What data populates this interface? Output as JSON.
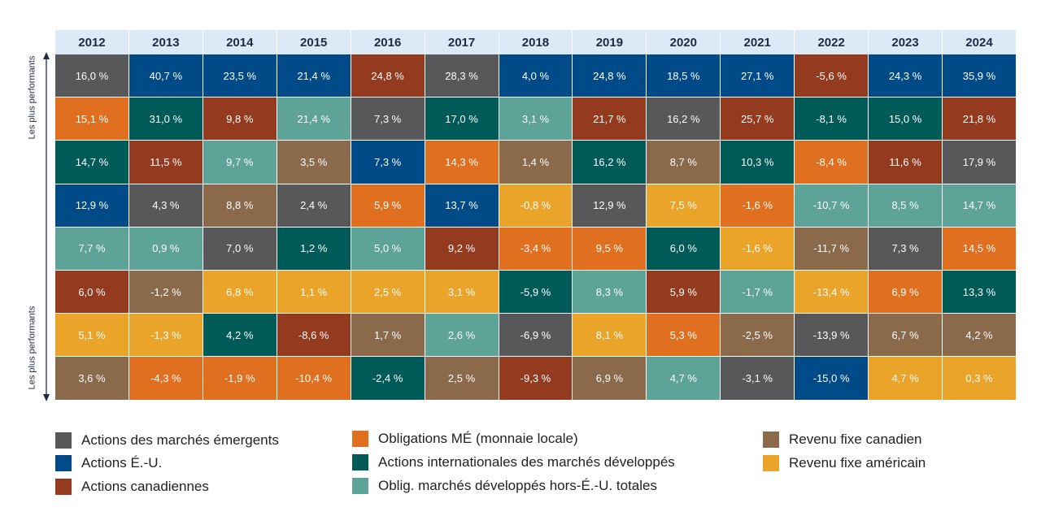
{
  "chart_data": {
    "type": "table",
    "title": "",
    "y_axis_top_label": "Les plus performants",
    "y_axis_bottom_label": "Les plus performants",
    "years": [
      "2012",
      "2013",
      "2014",
      "2015",
      "2016",
      "2017",
      "2018",
      "2019",
      "2020",
      "2021",
      "2022",
      "2023",
      "2024"
    ],
    "colors": {
      "em_equity": "#58585a",
      "us_equity": "#004b87",
      "cdn_equity": "#943a1f",
      "em_bonds": "#e07020",
      "intl_equity": "#005a58",
      "dev_bonds": "#5ea397",
      "cdn_fixed": "#8a6a4b",
      "us_fixed": "#eaa42a"
    },
    "legend": [
      {
        "key": "em_equity",
        "label": "Actions des marchés émergents"
      },
      {
        "key": "us_equity",
        "label": "Actions É.-U."
      },
      {
        "key": "cdn_equity",
        "label": "Actions canadiennes"
      },
      {
        "key": "em_bonds",
        "label": "Obligations MÉ (monnaie locale)"
      },
      {
        "key": "intl_equity",
        "label": "Actions internationales des marchés développés"
      },
      {
        "key": "dev_bonds",
        "label": "Oblig. marchés développés hors-É.-U. totales"
      },
      {
        "key": "cdn_fixed",
        "label": "Revenu fixe canadien"
      },
      {
        "key": "us_fixed",
        "label": "Revenu fixe américain"
      }
    ],
    "columns": [
      [
        {
          "v": "16,0 %",
          "k": "em_equity"
        },
        {
          "v": "15,1 %",
          "k": "em_bonds"
        },
        {
          "v": "14,7 %",
          "k": "intl_equity"
        },
        {
          "v": "12,9 %",
          "k": "us_equity"
        },
        {
          "v": "7,7 %",
          "k": "dev_bonds"
        },
        {
          "v": "6,0 %",
          "k": "cdn_equity"
        },
        {
          "v": "5,1 %",
          "k": "us_fixed"
        },
        {
          "v": "3,6 %",
          "k": "cdn_fixed"
        }
      ],
      [
        {
          "v": "40,7 %",
          "k": "us_equity"
        },
        {
          "v": "31,0 %",
          "k": "intl_equity"
        },
        {
          "v": "11,5 %",
          "k": "cdn_equity"
        },
        {
          "v": "4,3 %",
          "k": "em_equity"
        },
        {
          "v": "0,9 %",
          "k": "dev_bonds"
        },
        {
          "v": "-1,2 %",
          "k": "cdn_fixed"
        },
        {
          "v": "-1,3 %",
          "k": "us_fixed"
        },
        {
          "v": "-4,3 %",
          "k": "em_bonds"
        }
      ],
      [
        {
          "v": "23,5 %",
          "k": "us_equity"
        },
        {
          "v": "9,8 %",
          "k": "cdn_equity"
        },
        {
          "v": "9,7 %",
          "k": "dev_bonds"
        },
        {
          "v": "8,8 %",
          "k": "cdn_fixed"
        },
        {
          "v": "7,0 %",
          "k": "em_equity"
        },
        {
          "v": "6,8 %",
          "k": "us_fixed"
        },
        {
          "v": "4,2 %",
          "k": "intl_equity"
        },
        {
          "v": "-1,9 %",
          "k": "em_bonds"
        }
      ],
      [
        {
          "v": "21,4 %",
          "k": "us_equity"
        },
        {
          "v": "21,4 %",
          "k": "dev_bonds"
        },
        {
          "v": "3,5 %",
          "k": "cdn_fixed"
        },
        {
          "v": "2,4 %",
          "k": "em_equity"
        },
        {
          "v": "1,2 %",
          "k": "intl_equity"
        },
        {
          "v": "1,1 %",
          "k": "us_fixed"
        },
        {
          "v": "-8,6 %",
          "k": "cdn_equity"
        },
        {
          "v": "-10,4 %",
          "k": "em_bonds"
        }
      ],
      [
        {
          "v": "24,8 %",
          "k": "cdn_equity"
        },
        {
          "v": "7,3 %",
          "k": "em_equity"
        },
        {
          "v": "7,3 %",
          "k": "us_equity"
        },
        {
          "v": "5,9 %",
          "k": "em_bonds"
        },
        {
          "v": "5,0 %",
          "k": "dev_bonds"
        },
        {
          "v": "2,5 %",
          "k": "us_fixed"
        },
        {
          "v": "1,7 %",
          "k": "cdn_fixed"
        },
        {
          "v": "-2,4 %",
          "k": "intl_equity"
        }
      ],
      [
        {
          "v": "28,3 %",
          "k": "em_equity"
        },
        {
          "v": "17,0 %",
          "k": "intl_equity"
        },
        {
          "v": "14,3 %",
          "k": "em_bonds"
        },
        {
          "v": "13,7 %",
          "k": "us_equity"
        },
        {
          "v": "9,2 %",
          "k": "cdn_equity"
        },
        {
          "v": "3,1 %",
          "k": "us_fixed"
        },
        {
          "v": "2,6 %",
          "k": "dev_bonds"
        },
        {
          "v": "2,5 %",
          "k": "cdn_fixed"
        }
      ],
      [
        {
          "v": "4,0 %",
          "k": "us_equity"
        },
        {
          "v": "3,1 %",
          "k": "dev_bonds"
        },
        {
          "v": "1,4 %",
          "k": "cdn_fixed"
        },
        {
          "v": "-0,8 %",
          "k": "us_fixed"
        },
        {
          "v": "-3,4 %",
          "k": "em_bonds"
        },
        {
          "v": "-5,9 %",
          "k": "intl_equity"
        },
        {
          "v": "-6,9 %",
          "k": "em_equity"
        },
        {
          "v": "-9,3 %",
          "k": "cdn_equity"
        }
      ],
      [
        {
          "v": "24,8 %",
          "k": "us_equity"
        },
        {
          "v": "21,7 %",
          "k": "cdn_equity"
        },
        {
          "v": "16,2 %",
          "k": "intl_equity"
        },
        {
          "v": "12,9 %",
          "k": "em_equity"
        },
        {
          "v": "9,5 %",
          "k": "em_bonds"
        },
        {
          "v": "8,3 %",
          "k": "dev_bonds"
        },
        {
          "v": "8,1 %",
          "k": "us_fixed"
        },
        {
          "v": "6,9 %",
          "k": "cdn_fixed"
        }
      ],
      [
        {
          "v": "18,5 %",
          "k": "us_equity"
        },
        {
          "v": "16,2 %",
          "k": "em_equity"
        },
        {
          "v": "8,7 %",
          "k": "cdn_fixed"
        },
        {
          "v": "7,5 %",
          "k": "us_fixed"
        },
        {
          "v": "6,0 %",
          "k": "intl_equity"
        },
        {
          "v": "5,9 %",
          "k": "cdn_equity"
        },
        {
          "v": "5,3 %",
          "k": "em_bonds"
        },
        {
          "v": "4,7 %",
          "k": "dev_bonds"
        }
      ],
      [
        {
          "v": "27,1 %",
          "k": "us_equity"
        },
        {
          "v": "25,7 %",
          "k": "cdn_equity"
        },
        {
          "v": "10,3 %",
          "k": "intl_equity"
        },
        {
          "v": "-1,6 %",
          "k": "em_bonds"
        },
        {
          "v": "-1,6 %",
          "k": "us_fixed"
        },
        {
          "v": "-1,7 %",
          "k": "dev_bonds"
        },
        {
          "v": "-2,5 %",
          "k": "cdn_fixed"
        },
        {
          "v": "-3,1 %",
          "k": "em_equity"
        }
      ],
      [
        {
          "v": "-5,6 %",
          "k": "cdn_equity"
        },
        {
          "v": "-8,1 %",
          "k": "intl_equity"
        },
        {
          "v": "-8,4 %",
          "k": "em_bonds"
        },
        {
          "v": "-10,7 %",
          "k": "dev_bonds"
        },
        {
          "v": "-11,7 %",
          "k": "cdn_fixed"
        },
        {
          "v": "-13,4 %",
          "k": "us_fixed"
        },
        {
          "v": "-13,9 %",
          "k": "em_equity"
        },
        {
          "v": "-15,0 %",
          "k": "us_equity"
        }
      ],
      [
        {
          "v": "24,3 %",
          "k": "us_equity"
        },
        {
          "v": "15,0 %",
          "k": "intl_equity"
        },
        {
          "v": "11,6 %",
          "k": "cdn_equity"
        },
        {
          "v": "8,5 %",
          "k": "dev_bonds"
        },
        {
          "v": "7,3 %",
          "k": "em_equity"
        },
        {
          "v": "6,9 %",
          "k": "em_bonds"
        },
        {
          "v": "6,7 %",
          "k": "cdn_fixed"
        },
        {
          "v": "4,7 %",
          "k": "us_fixed"
        }
      ],
      [
        {
          "v": "35,9 %",
          "k": "us_equity"
        },
        {
          "v": "21,8 %",
          "k": "cdn_equity"
        },
        {
          "v": "17,9 %",
          "k": "em_equity"
        },
        {
          "v": "14,7 %",
          "k": "dev_bonds"
        },
        {
          "v": "14,5 %",
          "k": "em_bonds"
        },
        {
          "v": "13,3 %",
          "k": "intl_equity"
        },
        {
          "v": "4,2 %",
          "k": "cdn_fixed"
        },
        {
          "v": "0,3 %",
          "k": "us_fixed"
        }
      ]
    ]
  }
}
